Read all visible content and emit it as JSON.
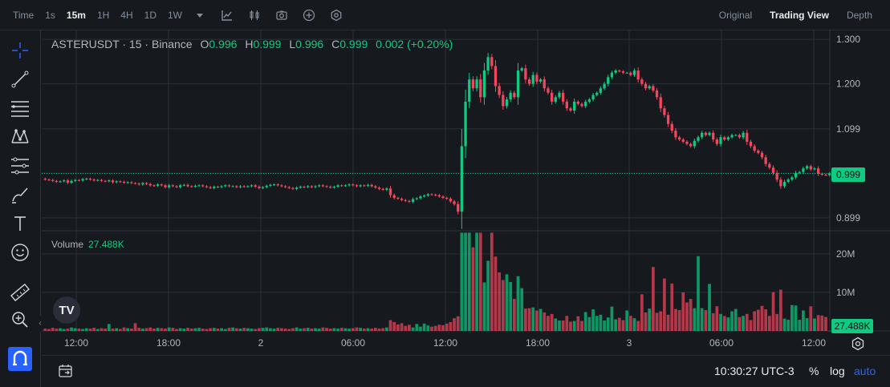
{
  "toolbar": {
    "time_label": "Time",
    "intervals": [
      "1s",
      "15m",
      "1H",
      "4H",
      "1D",
      "1W"
    ],
    "active_interval": "15m",
    "icons": [
      "caret-down-icon",
      "indicators-icon",
      "candle-style-icon",
      "screenshot-icon",
      "add-indicator-icon",
      "settings-hex-icon"
    ],
    "view_tabs": [
      "Original",
      "Trading View",
      "Depth"
    ],
    "active_view": "Trading View"
  },
  "left_tools": [
    "crosshair-icon",
    "trend-line-icon",
    "horizontal-lines-icon",
    "pattern-icon",
    "fib-icon",
    "brush-icon",
    "text-icon",
    "emoji-icon",
    "ruler-icon",
    "zoom-in-icon",
    "magnet-icon"
  ],
  "legend": {
    "symbol": "ASTERUSDT · 15 · Binance",
    "open_label": "O",
    "open": "0.996",
    "high_label": "H",
    "high": "0.999",
    "low_label": "L",
    "low": "0.996",
    "close_label": "C",
    "close": "0.999",
    "change": "0.002 (+0.20%)"
  },
  "volume_legend": {
    "label": "Volume",
    "value": "27.488K"
  },
  "price_axis": [
    "1.300",
    "1.200",
    "1.099",
    "0.999",
    "0.899"
  ],
  "current_price": "0.999",
  "volume_axis": [
    "20M",
    "10M"
  ],
  "current_volume": "27.488K",
  "time_axis": [
    "12:00",
    "18:00",
    "2",
    "06:00",
    "12:00",
    "18:00",
    "3",
    "06:00",
    "12:00"
  ],
  "bottom": {
    "clock": "10:30:27 UTC-3",
    "percent": "%",
    "log": "log",
    "auto": "auto"
  },
  "logo": "TV",
  "colors": {
    "up": "#0ecb81",
    "down": "#f6465d",
    "background": "#161a1e",
    "grid": "#2a2e39",
    "accent": "#2962ff"
  },
  "chart_data": {
    "type": "candlestick",
    "symbol": "ASTERUSDT",
    "interval": "15m",
    "price_range": [
      0.87,
      1.32
    ],
    "volume_range": [
      0,
      26000000
    ],
    "closes": [
      0.985,
      0.984,
      0.982,
      0.98,
      0.981,
      0.983,
      0.978,
      0.982,
      0.984,
      0.983,
      0.986,
      0.987,
      0.985,
      0.983,
      0.984,
      0.982,
      0.981,
      0.983,
      0.979,
      0.981,
      0.98,
      0.978,
      0.979,
      0.977,
      0.976,
      0.974,
      0.977,
      0.975,
      0.972,
      0.971,
      0.974,
      0.972,
      0.968,
      0.972,
      0.97,
      0.968,
      0.972,
      0.973,
      0.97,
      0.969,
      0.971,
      0.972,
      0.97,
      0.968,
      0.966,
      0.969,
      0.968,
      0.97,
      0.972,
      0.97,
      0.97,
      0.968,
      0.97,
      0.969,
      0.97,
      0.972,
      0.969,
      0.966,
      0.968,
      0.971,
      0.973,
      0.974,
      0.972,
      0.97,
      0.968,
      0.966,
      0.964,
      0.967,
      0.969,
      0.968,
      0.97,
      0.968,
      0.97,
      0.972,
      0.97,
      0.969,
      0.967,
      0.969,
      0.972,
      0.971,
      0.972,
      0.974,
      0.972,
      0.97,
      0.972,
      0.971,
      0.973,
      0.97,
      0.967,
      0.964,
      0.962,
      0.965,
      0.95,
      0.944,
      0.942,
      0.939,
      0.937,
      0.935,
      0.941,
      0.943,
      0.947,
      0.949,
      0.952,
      0.951,
      0.95,
      0.947,
      0.944,
      0.942,
      0.936,
      0.93,
      0.913,
      1.06,
      1.16,
      1.21,
      1.19,
      1.21,
      1.17,
      1.23,
      1.26,
      1.24,
      1.195,
      1.175,
      1.15,
      1.165,
      1.18,
      1.17,
      1.23,
      1.235,
      1.21,
      1.2,
      1.22,
      1.205,
      1.21,
      1.19,
      1.18,
      1.16,
      1.17,
      1.18,
      1.16,
      1.145,
      1.14,
      1.16,
      1.155,
      1.15,
      1.16,
      1.165,
      1.175,
      1.18,
      1.19,
      1.2,
      1.215,
      1.225,
      1.23,
      1.228,
      1.225,
      1.225,
      1.22,
      1.23,
      1.21,
      1.2,
      1.19,
      1.195,
      1.185,
      1.17,
      1.145,
      1.13,
      1.11,
      1.095,
      1.08,
      1.075,
      1.07,
      1.065,
      1.06,
      1.072,
      1.08,
      1.09,
      1.085,
      1.09,
      1.075,
      1.065,
      1.08,
      1.075,
      1.08,
      1.085,
      1.085,
      1.08,
      1.09,
      1.07,
      1.06,
      1.05,
      1.045,
      1.035,
      1.02,
      1.012,
      1.0,
      0.985,
      0.97,
      0.98,
      0.985,
      0.99,
      1.0,
      1.002,
      1.01,
      1.015,
      1.008,
      1.01,
      0.998,
      0.996,
      0.995,
      0.999
    ],
    "volume_millions": [
      0.6,
      0.5,
      0.8,
      0.6,
      0.7,
      0.5,
      0.6,
      0.9,
      0.7,
      0.6,
      0.5,
      0.7,
      0.6,
      0.8,
      0.5,
      0.7,
      0.6,
      1.8,
      0.6,
      0.7,
      0.5,
      0.9,
      0.7,
      0.6,
      2.0,
      0.8,
      0.6,
      0.7,
      0.9,
      0.6,
      0.8,
      0.7,
      0.6,
      0.9,
      0.8,
      0.5,
      0.7,
      0.6,
      0.8,
      0.6,
      0.7,
      0.8,
      0.6,
      0.5,
      0.7,
      0.8,
      0.6,
      0.7,
      0.5,
      0.8,
      0.9,
      0.7,
      0.6,
      0.8,
      0.7,
      0.6,
      0.5,
      0.7,
      0.8,
      0.9,
      0.7,
      0.6,
      0.8,
      0.7,
      0.6,
      0.5,
      0.7,
      0.9,
      0.6,
      0.7,
      0.8,
      0.6,
      0.7,
      0.6,
      0.9,
      0.8,
      0.6,
      0.7,
      0.6,
      0.8,
      0.7,
      0.6,
      0.7,
      0.9,
      0.8,
      0.6,
      0.7,
      0.6,
      0.8,
      0.6,
      0.7,
      0.9,
      2.8,
      2.3,
      1.7,
      2.0,
      1.3,
      1.6,
      0.9,
      1.8,
      1.1,
      1.9,
      1.4,
      1.1,
      1.3,
      1.6,
      1.5,
      1.9,
      2.3,
      3.3,
      3.8,
      25.5,
      25.5,
      25.5,
      21.7,
      25.5,
      25.5,
      12.6,
      18.2,
      25.5,
      19.3,
      15.2,
      13.2,
      14.7,
      12.7,
      8.3,
      14.2,
      11.1,
      5.8,
      5.9,
      6.1,
      5.3,
      5.7,
      4.8,
      3.9,
      4.4,
      3.2,
      2.7,
      2.7,
      3.9,
      2.4,
      2.6,
      3.8,
      2.6,
      4.9,
      3.6,
      5.6,
      3.9,
      4.2,
      2.7,
      3.5,
      6.3,
      3.0,
      3.4,
      2.8,
      5.3,
      3.9,
      3.3,
      2.6,
      9.5,
      4.8,
      5.8,
      16.6,
      4.7,
      5.1,
      13.6,
      4.2,
      12.3,
      5.7,
      5.4,
      10.0,
      7.4,
      8.3,
      5.9,
      19.4,
      5.9,
      5.4,
      12.2,
      4.6,
      6.4,
      4.4,
      3.9,
      3.5,
      5.1,
      5.7,
      3.6,
      3.9,
      4.4,
      2.8,
      5.1,
      5.5,
      6.5,
      5.6,
      3.9,
      10.1,
      4.4,
      10.7,
      3.2,
      2.9,
      6.7,
      6.6,
      2.9,
      5.3,
      3.3,
      6.4,
      3.2,
      4.1,
      4.0,
      3.6,
      0.03
    ]
  }
}
